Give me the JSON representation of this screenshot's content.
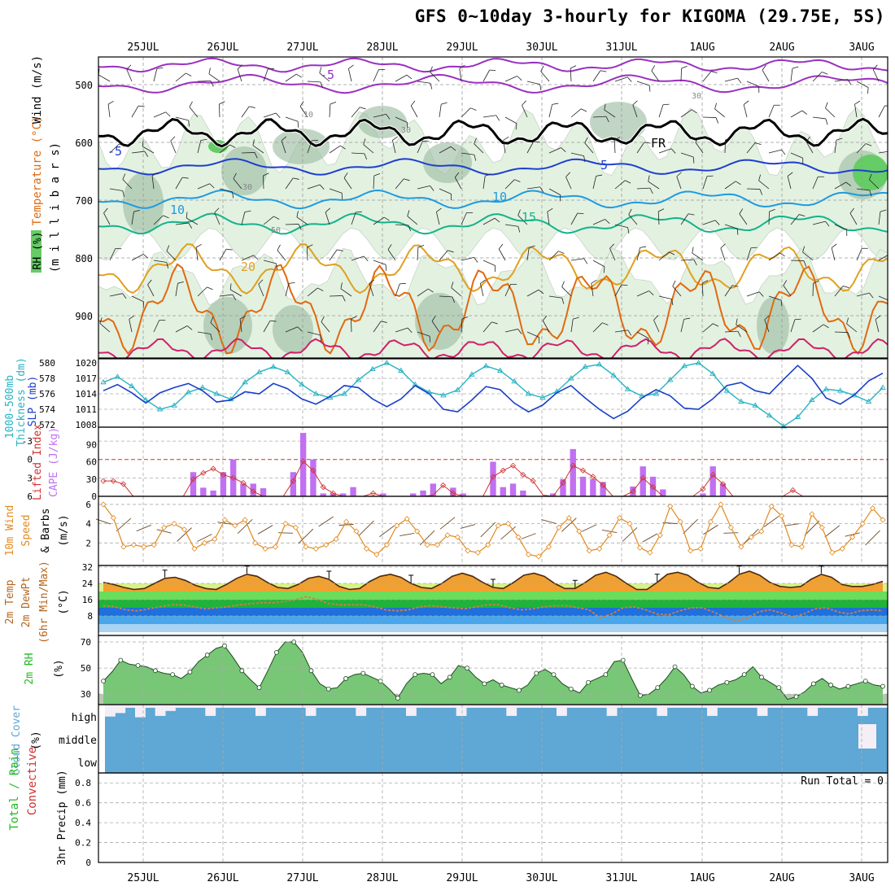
{
  "title": "GFS 0~10day 3-hourly for KIGOMA (29.75E, 5S)",
  "colors": {
    "rh_light": "#e3f1e1",
    "rh_mid": "#9fbfa4",
    "rh_dark": "#5d8a66",
    "rh_green": "#66cc66",
    "temp_neg5": "#1e3fcf",
    "temp_10": "#1e9be0",
    "temp_15": "#14b38a",
    "temp_20": "#e0a020",
    "temp_25": "#e06a10",
    "temp_30": "#d0206a",
    "wind": "#9a30c0",
    "freezing": "#000000",
    "thickness": "#26b3c4",
    "slp": "#1a3fc8",
    "cape": "#c070f0",
    "lifted": "#d03030",
    "wind10": "#e08a20",
    "cloud": "#5fa7d4",
    "rh2m": "#22bb22"
  },
  "days": [
    "25JUL",
    "26JUL",
    "27JUL",
    "28JUL",
    "29JUL",
    "30JUL",
    "31JUL",
    "1AUG",
    "2AUG",
    "3AUG"
  ],
  "upper": {
    "ylabel_rh": "RH (%)",
    "ylabel_temp": "Temperature (°C)",
    "ylabel_wind": "Wind (m/s)",
    "ylabel_mb": "(m i l l i b a r s)",
    "yticks": [
      500,
      600,
      700,
      800,
      900
    ],
    "contour_labels": [
      "-5",
      "-5",
      "5",
      "10",
      "10",
      "15",
      "20",
      "FR",
      "30",
      "30",
      "30",
      "50",
      "10"
    ]
  },
  "panels": {
    "slp": {
      "ylabel1": "1000-500mb",
      "ylabel2": "Thickness (dm)",
      "ylabel3": "SLP (mb)",
      "left_ticks": [
        "580",
        "578",
        "576",
        "574",
        "572"
      ],
      "right_ticks": [
        "1020",
        "1017",
        "1014",
        "1011",
        "1008"
      ]
    },
    "cape": {
      "ylabel1": "Lifted Index",
      "ylabel2": "CAPE (J/kg)",
      "left_ticks": [
        "-3",
        "0",
        "3",
        "6"
      ],
      "right_ticks": [
        "90",
        "60",
        "30",
        "0"
      ]
    },
    "wind": {
      "ylabel1": "10m Wind",
      "ylabel2": "Speed",
      "ylabel3": "& Barbs",
      "ylabel4": "(m/s)",
      "ticks": [
        "6",
        "4",
        "2"
      ]
    },
    "temp": {
      "ylabel1": "2m Temp",
      "ylabel2": "2m DewPt",
      "ylabel3": "(6hr Min/Max)",
      "ylabel4": "(°C)",
      "ticks": [
        "32",
        "24",
        "16",
        "8"
      ]
    },
    "rh": {
      "ylabel1": "2m RH",
      "ylabel2": "(%)",
      "ticks": [
        "70",
        "50",
        "30"
      ]
    },
    "cloud": {
      "ylabel1": "Cloud Cover",
      "ylabel2": "(%)",
      "levels": [
        "high",
        "middle",
        "low"
      ]
    },
    "precip": {
      "ylabel1": "Total / Rain",
      "ylabel2": "Convective",
      "ylabel3": "3hr Precip (mm)",
      "ticks": [
        "0.8",
        "0.6",
        "0.4",
        "0.2",
        "0"
      ],
      "run_total": "Run Total = 0"
    }
  },
  "chart_data": [
    {
      "type": "line",
      "title": "1000-500mb Thickness (dm) & SLP (mb)",
      "series": [
        {
          "name": "1000-500mb Thickness (dm)",
          "values": [
            577.5,
            578.2,
            577.0,
            575.2,
            574.0,
            574.5,
            576.2,
            576.8,
            576.0,
            575.3,
            577.5,
            578.8,
            579.5,
            578.8,
            577.2,
            576.0,
            575.5,
            576.0,
            577.8,
            579.2,
            580.0,
            579.0,
            577.2,
            576.2,
            575.8,
            576.5,
            578.5,
            579.6,
            579.0,
            577.6,
            576.0,
            575.5,
            576.3,
            578.0,
            579.5,
            579.8,
            578.4,
            576.6,
            575.7,
            576.0,
            577.8,
            579.6,
            580.0,
            578.6,
            576.4,
            575.0,
            574.5,
            573.2,
            571.8,
            573.0,
            575.2,
            576.6,
            576.4,
            575.8,
            575.0,
            576.8
          ]
        },
        {
          "name": "SLP (mb)",
          "values": [
            1014.6,
            1015.8,
            1014.2,
            1012.2,
            1014.2,
            1015.2,
            1016.0,
            1014.6,
            1012.4,
            1012.8,
            1014.4,
            1014.0,
            1016.0,
            1015.0,
            1013.0,
            1012.0,
            1013.5,
            1015.6,
            1015.2,
            1013.0,
            1011.5,
            1013.0,
            1015.6,
            1014.0,
            1011.0,
            1010.5,
            1012.8,
            1015.4,
            1014.8,
            1012.2,
            1010.5,
            1011.8,
            1014.2,
            1015.6,
            1013.2,
            1011.0,
            1009.2,
            1010.6,
            1013.2,
            1014.8,
            1013.6,
            1011.2,
            1011.0,
            1013.0,
            1015.6,
            1016.2,
            1014.6,
            1014.0,
            1016.8,
            1019.5,
            1017.0,
            1013.2,
            1012.0,
            1013.8,
            1016.5,
            1018.0
          ]
        }
      ],
      "ylim_left": [
        572,
        580
      ],
      "ylim_right": [
        1008,
        1020
      ]
    },
    {
      "type": "bar",
      "title": "Lifted Index / CAPE (J/kg)",
      "series": [
        {
          "name": "CAPE (J/kg)",
          "values": [
            0,
            0,
            0,
            0,
            0,
            0,
            0,
            0,
            0,
            42,
            15,
            10,
            42,
            64,
            22,
            22,
            14,
            0,
            0,
            42,
            110,
            64,
            5,
            5,
            5,
            16,
            0,
            0,
            5,
            0,
            0,
            5,
            10,
            22,
            0,
            15,
            5,
            0,
            0,
            60,
            16,
            22,
            10,
            0,
            0,
            5,
            30,
            82,
            34,
            30,
            25,
            0,
            0,
            17,
            52,
            34,
            12,
            0,
            0,
            0,
            5,
            52,
            22,
            0,
            0,
            0,
            0,
            0,
            0,
            0,
            0,
            0,
            0,
            0,
            0,
            0,
            0,
            0,
            0
          ]
        },
        {
          "name": "Lifted Index",
          "values": [
            3.5,
            3.5,
            4.0,
            6.0,
            6.0,
            6.0,
            6.0,
            6.0,
            6.0,
            3.2,
            2.2,
            1.5,
            2.5,
            3.0,
            3.8,
            5.2,
            6.0,
            6.0,
            6.0,
            3.5,
            0.3,
            1.8,
            4.5,
            5.5,
            6.0,
            6.0,
            6.0,
            5.5,
            6.0,
            6.0,
            6.0,
            6.0,
            6.0,
            5.8,
            4.2,
            5.5,
            6.0,
            6.0,
            6.0,
            2.8,
            1.8,
            1.0,
            2.5,
            3.5,
            5.8,
            6.0,
            3.8,
            1.0,
            1.8,
            2.8,
            4.2,
            6.0,
            6.0,
            5.2,
            3.0,
            4.5,
            6.0,
            6.0,
            6.0,
            6.0,
            4.8,
            2.5,
            4.0,
            6.0,
            6.0,
            6.0,
            6.0,
            6.0,
            6.0,
            5.0,
            6.0,
            6.0,
            6.0,
            6.0,
            6.0,
            6.0,
            6.0,
            6.0,
            6.0
          ]
        }
      ],
      "ylim_left": [
        6,
        -5
      ],
      "ylim_right": [
        0,
        120
      ]
    },
    {
      "type": "line",
      "title": "10m Wind Speed & Barbs (m/s)",
      "series": [
        {
          "name": "10m Wind Speed",
          "values": [
            6.0,
            4.6,
            1.6,
            1.8,
            1.6,
            1.8,
            3.6,
            4.0,
            3.4,
            1.4,
            2.0,
            2.4,
            4.4,
            3.8,
            4.4,
            2.0,
            1.4,
            1.6,
            4.0,
            3.6,
            1.6,
            1.4,
            1.8,
            2.4,
            4.2,
            3.2,
            1.4,
            0.8,
            1.8,
            3.8,
            4.5,
            3.2,
            1.8,
            1.8,
            2.8,
            2.6,
            1.2,
            1.0,
            1.8,
            3.8,
            4.0,
            2.6,
            0.8,
            0.6,
            1.6,
            3.6,
            4.6,
            3.2,
            1.2,
            1.4,
            2.8,
            4.6,
            4.0,
            1.5,
            1.0,
            2.8,
            5.8,
            4.2,
            1.2,
            1.4,
            4.2,
            6.0,
            3.6,
            1.6,
            2.6,
            3.2,
            5.8,
            4.8,
            1.8,
            1.6,
            5.0,
            3.6,
            1.0,
            1.4,
            2.6,
            4.0,
            5.6,
            4.4
          ]
        }
      ],
      "ylim": [
        0,
        6.5
      ]
    },
    {
      "type": "line",
      "title": "2m Temp / 2m DewPt (°C)",
      "series": [
        {
          "name": "2m Temp",
          "values": [
            24.5,
            23.5,
            22.0,
            21.0,
            21.5,
            24.0,
            26.5,
            27.0,
            25.5,
            23.0,
            21.5,
            21.0,
            23.5,
            26.5,
            28.5,
            27.5,
            24.5,
            22.0,
            21.5,
            23.5,
            26.5,
            27.5,
            26.0,
            22.5,
            21.0,
            21.5,
            25.0,
            27.5,
            28.5,
            27.0,
            24.0,
            22.0,
            21.5,
            24.0,
            27.5,
            29.0,
            27.5,
            24.5,
            22.0,
            21.5,
            24.5,
            28.0,
            29.0,
            27.5,
            24.0,
            21.5,
            21.5,
            24.5,
            28.0,
            29.5,
            27.5,
            24.0,
            21.0,
            21.0,
            24.5,
            28.5,
            29.5,
            28.0,
            24.5,
            22.0,
            21.5,
            24.5,
            28.5,
            30.0,
            28.0,
            24.5,
            22.5,
            22.0,
            22.5,
            26.0,
            28.5,
            27.0,
            23.5,
            22.5,
            22.5,
            23.5,
            25.0
          ]
        },
        {
          "name": "2m DewPt",
          "values": [
            13.0,
            12.5,
            11.0,
            10.5,
            11.5,
            12.5,
            13.5,
            13.5,
            12.5,
            11.5,
            12.0,
            12.5,
            13.5,
            14.0,
            14.5,
            14.5,
            15.0,
            16.0,
            17.5,
            16.0,
            14.0,
            13.5,
            13.5,
            13.5,
            12.5,
            11.0,
            10.5,
            11.0,
            12.5,
            13.0,
            12.5,
            12.0,
            11.5,
            12.5,
            13.5,
            13.5,
            12.0,
            11.0,
            11.5,
            12.5,
            13.0,
            13.0,
            12.0,
            11.0,
            7.0,
            9.0,
            12.0,
            12.5,
            11.0,
            9.0,
            8.5,
            10.5,
            12.0,
            12.0,
            10.0,
            7.5,
            5.5,
            7.0,
            10.0,
            11.0,
            9.5,
            7.5,
            9.0,
            11.5,
            12.0,
            10.0,
            9.0,
            10.5,
            11.0,
            10.5
          ]
        }
      ],
      "ylim": [
        0,
        32
      ]
    },
    {
      "type": "area",
      "title": "2m RH (%)",
      "series": [
        {
          "name": "2m RH",
          "values": [
            40,
            47,
            56,
            53,
            52,
            51,
            48,
            46,
            45,
            42,
            47,
            55,
            60,
            65,
            67,
            58,
            48,
            41,
            35,
            48,
            62,
            70,
            70,
            62,
            48,
            38,
            34,
            35,
            42,
            45,
            46,
            43,
            40,
            34,
            27,
            38,
            45,
            46,
            45,
            38,
            43,
            52,
            50,
            43,
            38,
            41,
            37,
            35,
            33,
            37,
            46,
            49,
            45,
            38,
            34,
            31,
            39,
            42,
            45,
            55,
            56,
            42,
            29,
            30,
            35,
            42,
            51,
            45,
            36,
            31,
            33,
            37,
            39,
            41,
            45,
            51,
            43,
            39,
            35,
            26,
            28,
            32,
            38,
            42,
            37,
            34,
            36,
            38,
            40,
            37,
            36
          ]
        }
      ],
      "ylim": [
        22,
        75
      ]
    },
    {
      "type": "bar",
      "title": "Cloud Cover (%)",
      "series": [
        {
          "name": "high",
          "values": [
            82,
            60,
            85,
            40,
            85,
            85,
            70,
            85,
            85,
            85,
            85,
            85,
            85,
            85,
            85,
            85,
            85,
            85,
            85,
            85,
            85,
            85,
            85,
            85,
            85,
            85,
            85,
            85,
            85,
            85,
            85,
            85,
            85,
            85,
            85,
            85,
            85,
            85,
            85,
            85,
            85,
            85,
            85,
            85,
            85,
            85,
            85,
            85,
            85,
            85,
            85,
            85,
            85,
            85,
            85,
            85,
            85,
            85,
            85,
            85,
            85,
            85,
            85,
            85,
            85,
            85,
            85,
            85,
            85,
            85,
            85,
            85,
            85,
            85,
            85,
            85,
            85,
            85
          ]
        }
      ],
      "ylim": [
        0,
        100
      ]
    },
    {
      "type": "bar",
      "title": "3hr Precip (mm)",
      "series": [
        {
          "name": "Total / Rain",
          "values": []
        },
        {
          "name": "Convective",
          "values": []
        }
      ],
      "ylim": [
        0,
        0.9
      ]
    }
  ]
}
